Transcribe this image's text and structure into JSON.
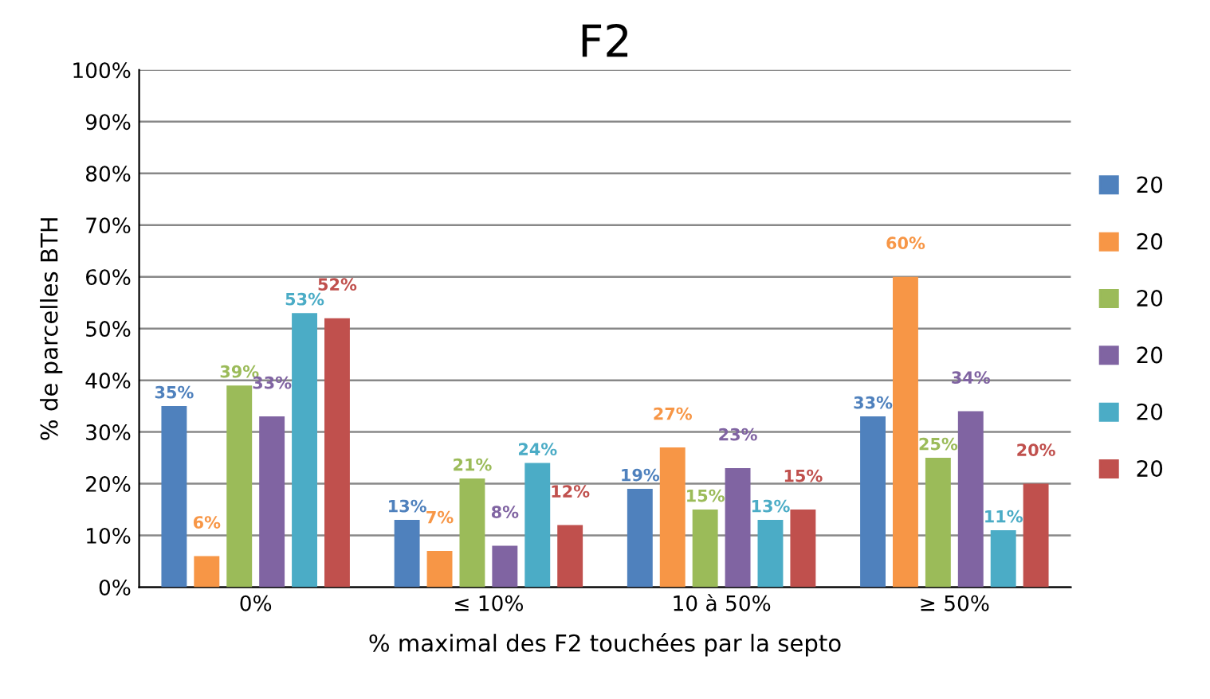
{
  "chart_data": {
    "type": "bar",
    "title": "F2",
    "xlabel": "% maximal des F2 touchées par la septo",
    "ylabel": "% de parcelles BTH",
    "categories": [
      "0%",
      "≤ 10%",
      "10 à 50%",
      "≥ 50%"
    ],
    "series": [
      {
        "name": "20",
        "color": "#4f81bd",
        "values": [
          35,
          13,
          19,
          33
        ],
        "value_labels": [
          "35%",
          "13%",
          "19%",
          "33%"
        ]
      },
      {
        "name": "20",
        "color": "#f79646",
        "values": [
          6,
          7,
          27,
          60
        ],
        "value_labels": [
          "6%",
          "7%",
          "27%",
          "60%"
        ]
      },
      {
        "name": "20",
        "color": "#9bbb59",
        "values": [
          39,
          21,
          15,
          25
        ],
        "value_labels": [
          "39%",
          "21%",
          "15%",
          "25%"
        ]
      },
      {
        "name": "20",
        "color": "#8064a2",
        "values": [
          33,
          8,
          23,
          34
        ],
        "value_labels": [
          "33%",
          "8%",
          "23%",
          "34%"
        ]
      },
      {
        "name": "20",
        "color": "#4bacc6",
        "values": [
          53,
          24,
          13,
          11
        ],
        "value_labels": [
          "53%",
          "24%",
          "13%",
          "11%"
        ]
      },
      {
        "name": "20",
        "color": "#c0504d",
        "values": [
          52,
          12,
          15,
          20
        ],
        "value_labels": [
          "52%",
          "12%",
          "15%",
          "20%"
        ]
      }
    ],
    "ylim": [
      0,
      100
    ],
    "yticks": [
      {
        "value": 0,
        "label": "0%"
      },
      {
        "value": 10,
        "label": "10%"
      },
      {
        "value": 20,
        "label": "20%"
      },
      {
        "value": 30,
        "label": "30%"
      },
      {
        "value": 40,
        "label": "40%"
      },
      {
        "value": 50,
        "label": "50%"
      },
      {
        "value": 60,
        "label": "60%"
      },
      {
        "value": 70,
        "label": "70%"
      },
      {
        "value": 80,
        "label": "80%"
      },
      {
        "value": 90,
        "label": "90%"
      },
      {
        "value": 100,
        "label": "100%"
      }
    ],
    "grid": "y",
    "legend": "right"
  }
}
